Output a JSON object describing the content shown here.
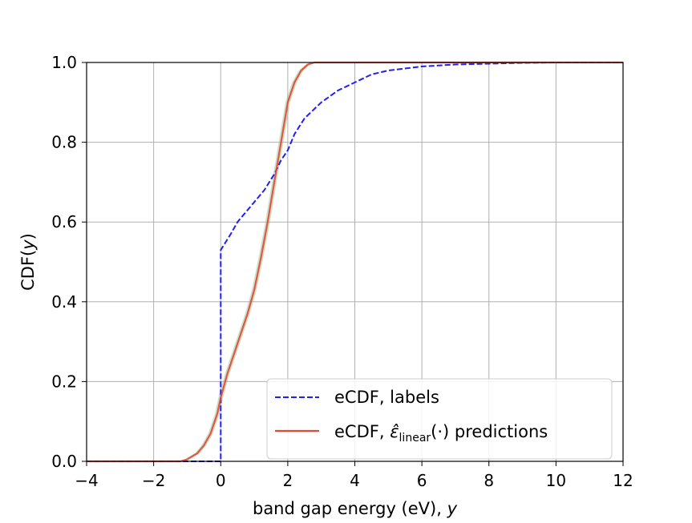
{
  "chart_data": {
    "type": "line",
    "title": "",
    "xlabel": {
      "prefix": "band gap energy (eV), ",
      "var": "y"
    },
    "ylabel": {
      "prefix": "CDF(",
      "var": "y",
      "suffix": ")"
    },
    "xlim": [
      -4,
      12
    ],
    "ylim": [
      0.0,
      1.0
    ],
    "xticks": [
      -4,
      -2,
      0,
      2,
      4,
      6,
      8,
      10,
      12
    ],
    "xtick_labels": [
      "−4",
      "−2",
      "0",
      "2",
      "4",
      "6",
      "8",
      "10",
      "12"
    ],
    "yticks": [
      0.0,
      0.2,
      0.4,
      0.6,
      0.8,
      1.0
    ],
    "ytick_labels": [
      "0.0",
      "0.2",
      "0.4",
      "0.6",
      "0.8",
      "1.0"
    ],
    "grid": true,
    "legend_position": "lower-right",
    "series": [
      {
        "name": "eCDF, labels",
        "legend_parts": {
          "text": "eCDF, labels"
        },
        "color": "#1f1fff",
        "style": "dashed",
        "x": [
          -4,
          0,
          0,
          0.3,
          0.5,
          0.8,
          1.0,
          1.3,
          1.6,
          1.8,
          2.0,
          2.2,
          2.5,
          3.0,
          3.5,
          4.0,
          4.5,
          5.0,
          5.5,
          6.0,
          7.0,
          8.0,
          9.0,
          10.0,
          12.0
        ],
        "y": [
          0,
          0,
          0.53,
          0.57,
          0.6,
          0.63,
          0.65,
          0.68,
          0.72,
          0.755,
          0.78,
          0.82,
          0.86,
          0.9,
          0.93,
          0.95,
          0.97,
          0.98,
          0.985,
          0.99,
          0.995,
          0.997,
          0.999,
          1.0,
          1.0
        ]
      },
      {
        "name": "eCDF, ε̂_linear(·) predictions",
        "legend_parts": {
          "prefix": "eCDF, ",
          "symbol": "ε̂",
          "sub": "linear",
          "suffix": "(·) predictions"
        },
        "color": "#e24a33",
        "band_color": "#8fbc8f",
        "style": "solid",
        "x": [
          -4,
          -1.2,
          -1.0,
          -0.7,
          -0.5,
          -0.3,
          -0.1,
          0.0,
          0.2,
          0.4,
          0.6,
          0.8,
          1.0,
          1.2,
          1.4,
          1.6,
          1.8,
          2.0,
          2.2,
          2.4,
          2.6,
          2.8,
          3.0,
          12.0
        ],
        "y": [
          0,
          0,
          0.005,
          0.02,
          0.04,
          0.07,
          0.12,
          0.16,
          0.22,
          0.27,
          0.32,
          0.37,
          0.43,
          0.51,
          0.6,
          0.7,
          0.8,
          0.9,
          0.95,
          0.98,
          0.995,
          1.0,
          1.0,
          1.0
        ]
      }
    ]
  }
}
